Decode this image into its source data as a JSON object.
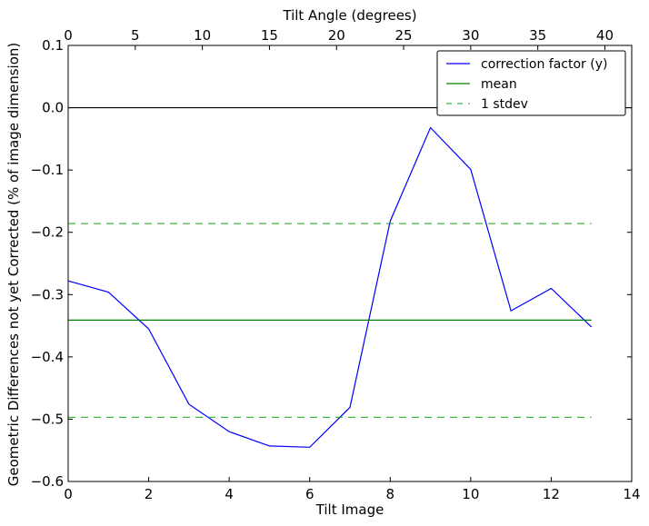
{
  "chart_data": {
    "type": "line",
    "xlabel": "Tilt Image",
    "x2label": "Tilt Angle (degrees)",
    "ylabel": "Geometric Differences not yet Corrected (% of image dimension)",
    "xlim": [
      0,
      14
    ],
    "ylim": [
      -0.6,
      0.1
    ],
    "x2lim": [
      0,
      42
    ],
    "xticks": [
      0,
      2,
      4,
      6,
      8,
      10,
      12,
      14
    ],
    "xtick_labels": [
      "0",
      "2",
      "4",
      "6",
      "8",
      "10",
      "12",
      "14"
    ],
    "x2ticks": [
      0,
      5,
      10,
      15,
      20,
      25,
      30,
      35,
      40
    ],
    "x2tick_labels": [
      "0",
      "5",
      "10",
      "15",
      "20",
      "25",
      "30",
      "35",
      "40"
    ],
    "yticks": [
      0.1,
      0.0,
      -0.1,
      -0.2,
      -0.3,
      -0.4,
      -0.5,
      -0.6
    ],
    "ytick_labels": [
      "0.1",
      "0.0",
      "−0.1",
      "−0.2",
      "−0.3",
      "−0.4",
      "−0.5",
      "−0.6"
    ],
    "series": [
      {
        "name": "correction factor (y)",
        "color": "#0000ff",
        "style": "solid",
        "x": [
          0,
          1,
          2,
          3,
          4,
          5,
          6,
          7,
          8,
          9,
          10,
          11,
          12,
          13
        ],
        "y": [
          -0.278,
          -0.296,
          -0.355,
          -0.476,
          -0.52,
          -0.543,
          -0.545,
          -0.481,
          -0.182,
          -0.032,
          -0.099,
          -0.326,
          -0.29,
          -0.352
        ]
      },
      {
        "name": "mean",
        "color": "#008000",
        "style": "solid",
        "x": [
          0,
          13
        ],
        "y": [
          -0.341,
          -0.341
        ]
      },
      {
        "name": "1 stdev",
        "color": "#00a000",
        "style": "dashed",
        "x": [
          0,
          13
        ],
        "y": [
          -0.186,
          -0.186
        ]
      },
      {
        "name": "",
        "color": "#00a000",
        "style": "dashed",
        "x": [
          0,
          13
        ],
        "y": [
          -0.497,
          -0.497
        ]
      },
      {
        "name": "",
        "color": "#000000",
        "style": "solid",
        "x": [
          0,
          14
        ],
        "y": [
          0.0,
          0.0
        ]
      }
    ],
    "legend": {
      "position": "top-right",
      "entries": [
        "correction factor (y)",
        "mean",
        "1 stdev"
      ]
    },
    "grid": false
  }
}
